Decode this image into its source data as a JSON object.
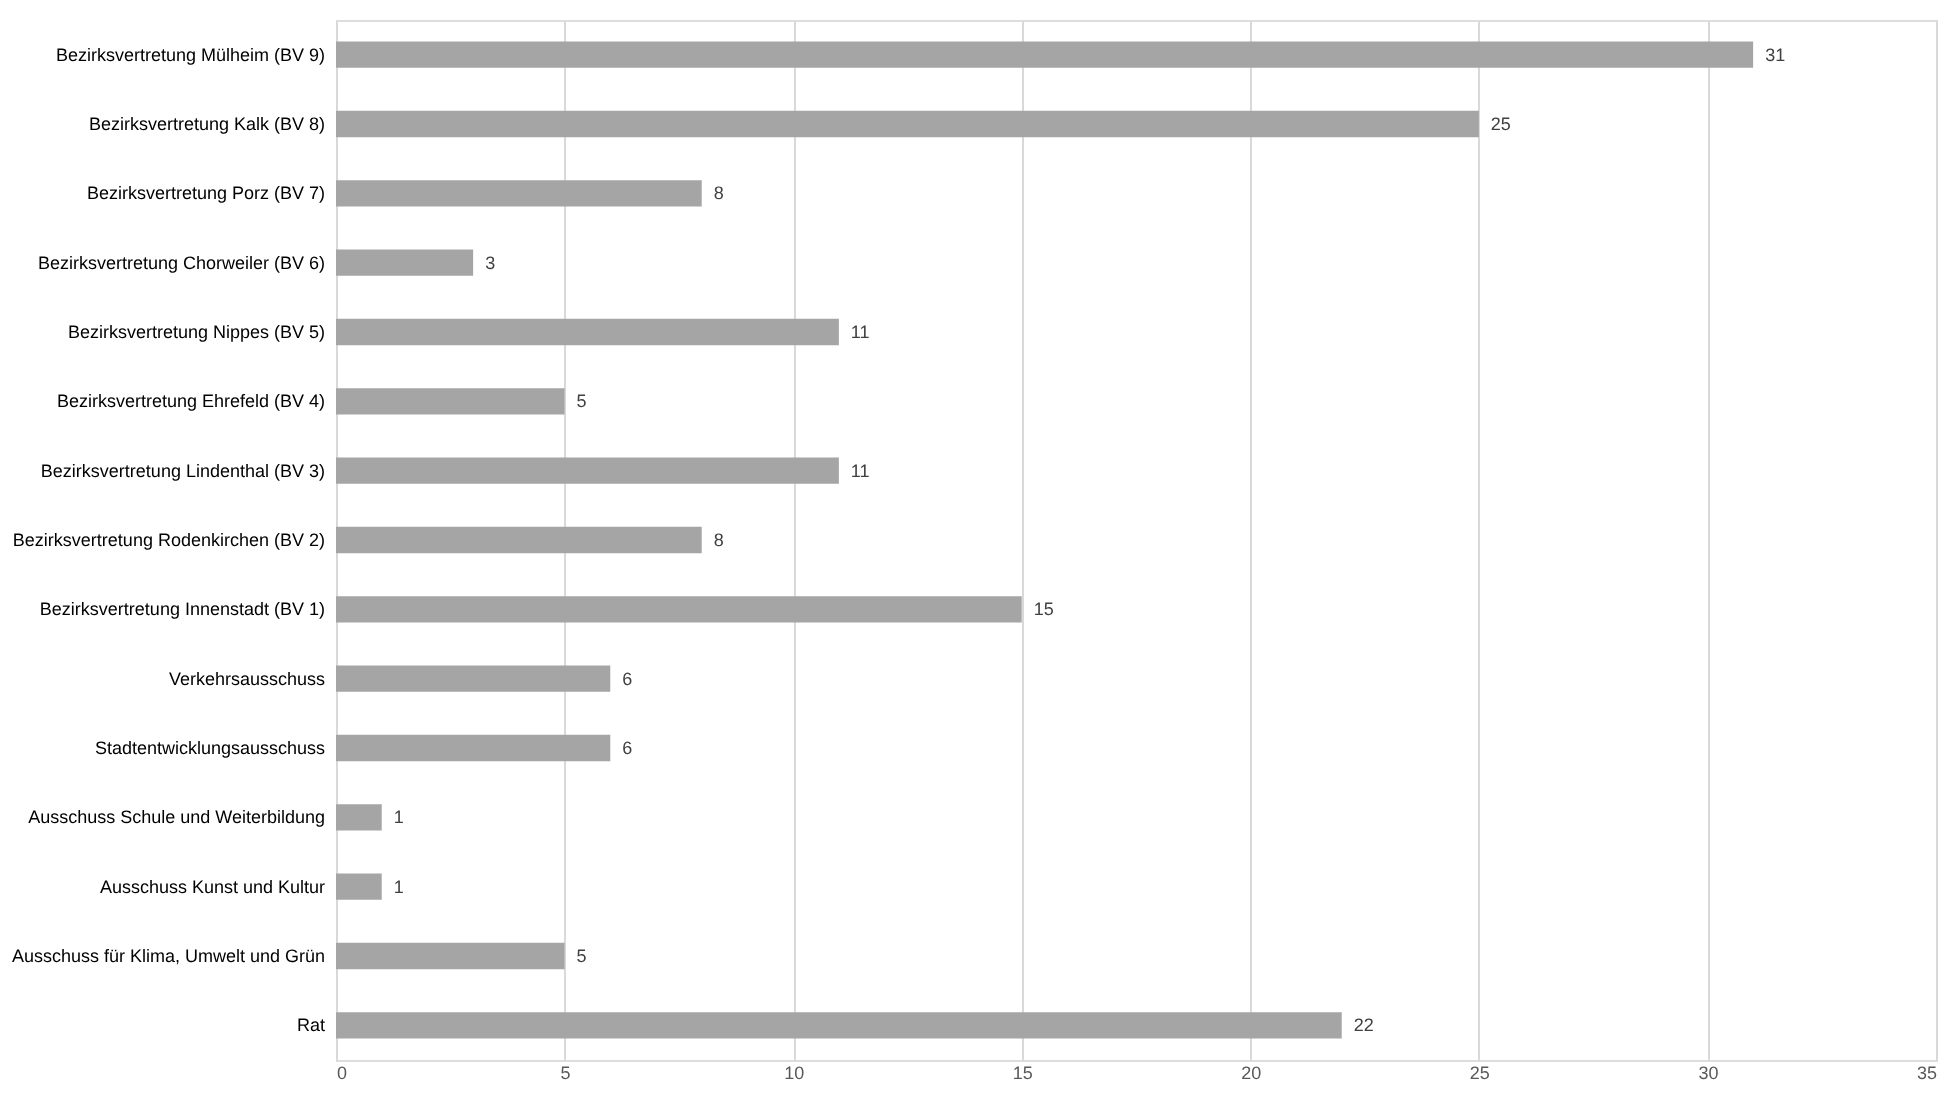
{
  "chart_data": {
    "type": "bar",
    "orientation": "horizontal",
    "categories": [
      "Bezirksvertretung Mülheim (BV 9)",
      "Bezirksvertretung Kalk (BV 8)",
      "Bezirksvertretung Porz (BV 7)",
      "Bezirksvertretung Chorweiler (BV 6)",
      "Bezirksvertretung Nippes (BV 5)",
      "Bezirksvertretung Ehrefeld (BV 4)",
      "Bezirksvertretung Lindenthal (BV 3)",
      "Bezirksvertretung Rodenkirchen (BV 2)",
      "Bezirksvertretung Innenstadt (BV 1)",
      "Verkehrsausschuss",
      "Stadtentwicklungsausschuss",
      "Ausschuss Schule und Weiterbildung",
      "Ausschuss Kunst und Kultur",
      "Ausschuss für Klima, Umwelt und Grün",
      "Rat"
    ],
    "values": [
      31,
      25,
      8,
      3,
      11,
      5,
      11,
      8,
      15,
      6,
      6,
      1,
      1,
      5,
      22
    ],
    "color": "#a5a5a5",
    "xlim": [
      0,
      35
    ],
    "xticks": [
      0,
      5,
      10,
      15,
      20,
      25,
      30,
      35
    ],
    "grid": "x",
    "data_labels": true
  }
}
